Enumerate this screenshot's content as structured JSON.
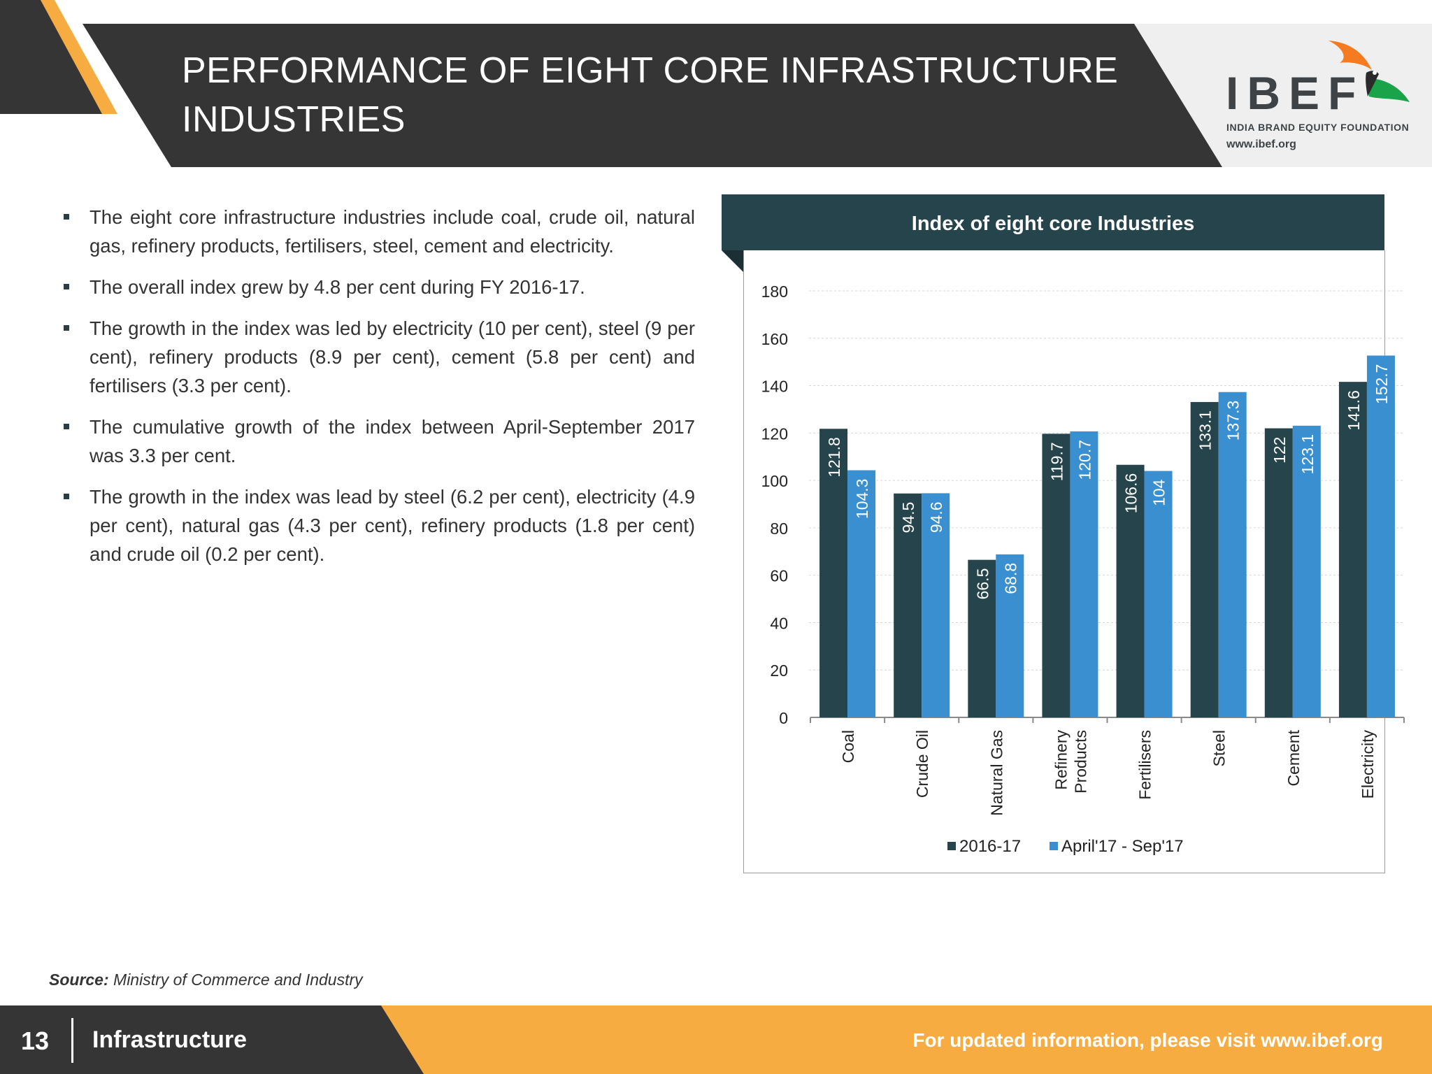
{
  "header": {
    "title_line1": "PERFORMANCE OF EIGHT CORE INFRASTRUCTURE",
    "title_line2": "INDUSTRIES"
  },
  "logo": {
    "word": "IBEF",
    "tagline": "INDIA BRAND EQUITY FOUNDATION",
    "url": "www.ibef.org"
  },
  "bullets": [
    "The eight core infrastructure industries include coal, crude oil, natural gas, refinery products, fertilisers, steel, cement and electricity.",
    "The overall index grew by 4.8 per cent during FY 2016-17.",
    "The growth in the index was led by electricity (10 per cent), steel (9 per cent), refinery products (8.9 per cent), cement (5.8 per cent) and fertilisers (3.3 per cent).",
    "The cumulative growth of the index between April-September 2017 was 3.3 per cent.",
    "The growth in the index was lead by steel (6.2 per cent), electricity (4.9 per cent), natural gas (4.3 per cent), refinery products (1.8 per cent) and crude oil (0.2 per cent)."
  ],
  "chart_data": {
    "type": "bar",
    "title": "Index of eight core Industries",
    "categories": [
      "Coal",
      "Crude Oil",
      "Natural Gas",
      "Refinery Products",
      "Fertilisers",
      "Steel",
      "Cement",
      "Electricity"
    ],
    "series": [
      {
        "name": "2016-17",
        "color": "#26444b",
        "values": [
          121.8,
          94.5,
          66.5,
          119.7,
          106.6,
          133.1,
          122,
          141.6
        ]
      },
      {
        "name": "April'17 - Sep'17",
        "color": "#3a8fd0",
        "values": [
          104.3,
          94.6,
          68.8,
          120.7,
          104,
          137.3,
          123.1,
          152.7
        ]
      }
    ],
    "ylim": [
      0,
      180
    ],
    "yticks": [
      0,
      20,
      40,
      60,
      80,
      100,
      120,
      140,
      160,
      180
    ],
    "grid": true,
    "legend": "bottom",
    "data_labels": "inside-vertical"
  },
  "source": {
    "label": "Source:",
    "text": "Ministry of Commerce and Industry"
  },
  "footer": {
    "page": "13",
    "section": "Infrastructure",
    "visit": "For updated information, please visit www.ibef.org"
  },
  "colors": {
    "dark": "#353535",
    "accent_orange": "#f7ac42",
    "chart_header": "#26444b"
  }
}
